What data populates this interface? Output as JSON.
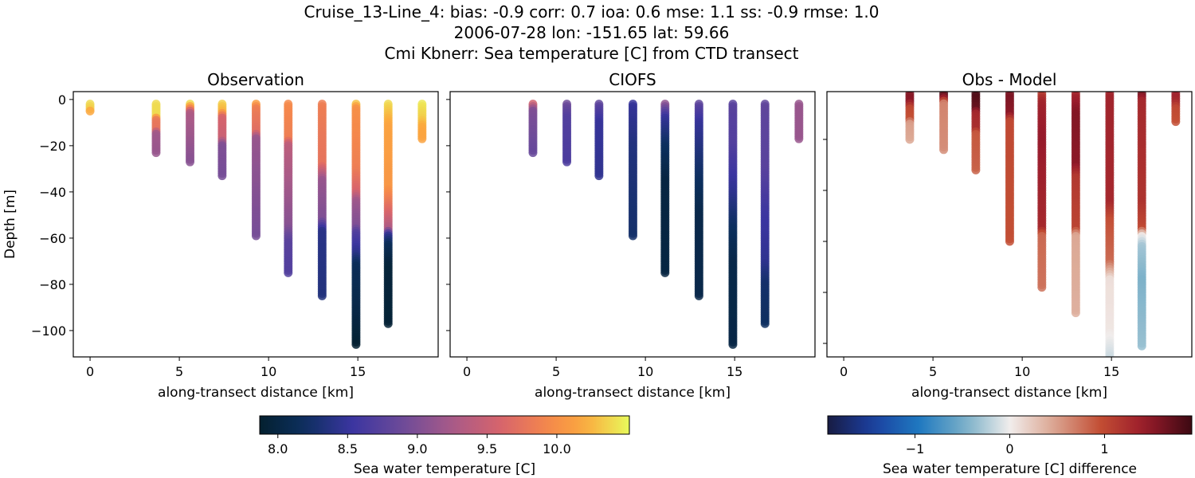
{
  "title_lines": [
    "Cruise_13-Line_4: bias: -0.9  corr: 0.7  ioa: 0.6  mse: 1.1  ss: -0.9  rmse: 1.0",
    "2006-07-28 lon: -151.65 lat: 59.66",
    "Cmi Kbnerr: Sea temperature [C] from CTD transect"
  ],
  "chart_data": [
    {
      "type": "scatter",
      "title": "Observation",
      "xlabel": "along-transect distance [km]",
      "ylabel": "Depth [m]",
      "xlim": [
        -0.94,
        19.5
      ],
      "ylim": [
        -111.4,
        3.4
      ],
      "xticks": [
        0,
        5,
        10,
        15
      ],
      "yticks": [
        0,
        -20,
        -40,
        -60,
        -80,
        -100
      ],
      "colormap": "thermal",
      "clim": [
        7.87,
        10.52
      ],
      "stations": [
        {
          "x": 0.0,
          "profile": [
            [
              -2,
              10.4
            ],
            [
              -4,
              10.35
            ],
            [
              -5.5,
              10.1
            ]
          ]
        },
        {
          "x": 3.7,
          "profile": [
            [
              -2,
              10.4
            ],
            [
              -7,
              10.4
            ],
            [
              -9,
              9.8
            ],
            [
              -13,
              9.75
            ],
            [
              -15,
              9.2
            ],
            [
              -23,
              9.15
            ]
          ]
        },
        {
          "x": 5.6,
          "profile": [
            [
              -2,
              10.4
            ],
            [
              -4,
              9.9
            ],
            [
              -6,
              9.3
            ],
            [
              -27,
              9.05
            ]
          ]
        },
        {
          "x": 7.4,
          "profile": [
            [
              -2,
              10.35
            ],
            [
              -5,
              10.25
            ],
            [
              -8,
              9.6
            ],
            [
              -17,
              9.5
            ],
            [
              -20,
              9.0
            ],
            [
              -33,
              8.95
            ]
          ]
        },
        {
          "x": 9.3,
          "profile": [
            [
              -2,
              10.1
            ],
            [
              -4,
              9.85
            ],
            [
              -14,
              9.7
            ],
            [
              -17,
              9.15
            ],
            [
              -59,
              8.95
            ]
          ]
        },
        {
          "x": 11.1,
          "profile": [
            [
              -2,
              9.95
            ],
            [
              -17,
              9.85
            ],
            [
              -20,
              9.4
            ],
            [
              -40,
              9.2
            ],
            [
              -55,
              9.05
            ],
            [
              -62,
              8.75
            ],
            [
              -75,
              8.7
            ]
          ]
        },
        {
          "x": 13.0,
          "profile": [
            [
              -2,
              9.85
            ],
            [
              -28,
              9.75
            ],
            [
              -35,
              9.15
            ],
            [
              -52,
              9.0
            ],
            [
              -57,
              8.4
            ],
            [
              -85,
              8.35
            ]
          ]
        },
        {
          "x": 14.9,
          "profile": [
            [
              -2,
              10.3
            ],
            [
              -4,
              10.0
            ],
            [
              -30,
              9.85
            ],
            [
              -40,
              9.6
            ],
            [
              -44,
              9.2
            ],
            [
              -55,
              9.0
            ],
            [
              -58,
              8.7
            ],
            [
              -66,
              8.45
            ],
            [
              -72,
              8.15
            ],
            [
              -90,
              8.05
            ],
            [
              -106,
              7.9
            ]
          ]
        },
        {
          "x": 16.7,
          "profile": [
            [
              -2,
              10.4
            ],
            [
              -6,
              10.3
            ],
            [
              -12,
              10.15
            ],
            [
              -38,
              10.05
            ],
            [
              -50,
              9.6
            ],
            [
              -56,
              9.3
            ],
            [
              -59,
              8.45
            ],
            [
              -63,
              8.15
            ],
            [
              -72,
              7.95
            ],
            [
              -97,
              7.92
            ]
          ]
        },
        {
          "x": 18.6,
          "profile": [
            [
              -2,
              10.45
            ],
            [
              -8,
              10.35
            ],
            [
              -12,
              10.2
            ],
            [
              -17,
              10.15
            ]
          ]
        }
      ]
    },
    {
      "type": "scatter",
      "title": "CIOFS",
      "xlabel": "along-transect distance [km]",
      "xlim": [
        -0.94,
        19.5
      ],
      "ylim": [
        -111.4,
        3.4
      ],
      "xticks": [
        0,
        5,
        10,
        15
      ],
      "yticks": [
        0,
        -20,
        -40,
        -60,
        -80,
        -100
      ],
      "colormap": "thermal",
      "clim": [
        7.87,
        10.52
      ],
      "stations": [
        {
          "x": 3.7,
          "profile": [
            [
              -2,
              9.55
            ],
            [
              -5,
              9.0
            ],
            [
              -23,
              8.85
            ]
          ]
        },
        {
          "x": 5.6,
          "profile": [
            [
              -2,
              8.9
            ],
            [
              -8,
              8.7
            ],
            [
              -27,
              8.65
            ]
          ]
        },
        {
          "x": 7.4,
          "profile": [
            [
              -2,
              8.8
            ],
            [
              -10,
              8.5
            ],
            [
              -33,
              8.45
            ]
          ]
        },
        {
          "x": 9.3,
          "profile": [
            [
              -2,
              8.5
            ],
            [
              -20,
              8.35
            ],
            [
              -59,
              8.25
            ]
          ]
        },
        {
          "x": 11.1,
          "profile": [
            [
              -2,
              9.1
            ],
            [
              -8,
              8.5
            ],
            [
              -20,
              8.2
            ],
            [
              -35,
              8.0
            ],
            [
              -75,
              8.0
            ]
          ]
        },
        {
          "x": 13.0,
          "profile": [
            [
              -2,
              8.8
            ],
            [
              -10,
              8.5
            ],
            [
              -30,
              8.25
            ],
            [
              -50,
              8.05
            ],
            [
              -85,
              8.05
            ]
          ]
        },
        {
          "x": 14.9,
          "profile": [
            [
              -2,
              8.75
            ],
            [
              -20,
              8.7
            ],
            [
              -40,
              8.45
            ],
            [
              -55,
              8.2
            ],
            [
              -70,
              8.05
            ],
            [
              -106,
              8.02
            ]
          ]
        },
        {
          "x": 16.7,
          "profile": [
            [
              -2,
              8.8
            ],
            [
              -30,
              8.75
            ],
            [
              -50,
              8.55
            ],
            [
              -70,
              8.45
            ],
            [
              -80,
              8.25
            ],
            [
              -97,
              8.2
            ]
          ]
        },
        {
          "x": 18.6,
          "profile": [
            [
              -2,
              9.15
            ],
            [
              -17,
              9.15
            ]
          ]
        }
      ]
    },
    {
      "type": "scatter",
      "title": "Obs - Model",
      "xlabel": "along-transect distance [km]",
      "xlim": [
        -0.94,
        19.5
      ],
      "ylim": [
        -105.3,
        -1.25
      ],
      "xticks": [
        0,
        5,
        10,
        15
      ],
      "yticks": [
        -20,
        -40,
        -60,
        -80,
        -100
      ],
      "colormap": "balance",
      "clim": [
        -1.92,
        1.92
      ],
      "stations": [
        {
          "x": 3.7,
          "profile": [
            [
              -2,
              1.55
            ],
            [
              -5,
              1.5
            ],
            [
              -8,
              1.0
            ],
            [
              -12,
              0.95
            ],
            [
              -14,
              0.5
            ],
            [
              -20,
              0.45
            ]
          ]
        },
        {
          "x": 5.6,
          "profile": [
            [
              -2,
              1.85
            ],
            [
              -4,
              1.4
            ],
            [
              -6,
              0.65
            ],
            [
              -24,
              0.6
            ]
          ]
        },
        {
          "x": 7.4,
          "profile": [
            [
              -2,
              1.85
            ],
            [
              -8,
              1.7
            ],
            [
              -10,
              1.3
            ],
            [
              -16,
              1.25
            ],
            [
              -18,
              0.9
            ],
            [
              -32,
              0.85
            ]
          ]
        },
        {
          "x": 9.3,
          "profile": [
            [
              -2,
              1.6
            ],
            [
              -10,
              1.5
            ],
            [
              -13,
              1.0
            ],
            [
              -60,
              0.95
            ]
          ]
        },
        {
          "x": 11.1,
          "profile": [
            [
              -2,
              1.1
            ],
            [
              -6,
              1.35
            ],
            [
              -20,
              1.45
            ],
            [
              -55,
              1.3
            ],
            [
              -58,
              0.8
            ],
            [
              -78,
              0.75
            ]
          ]
        },
        {
          "x": 13.0,
          "profile": [
            [
              -2,
              1.3
            ],
            [
              -10,
              1.55
            ],
            [
              -30,
              1.5
            ],
            [
              -35,
              1.15
            ],
            [
              -55,
              1.05
            ],
            [
              -58,
              0.45
            ],
            [
              -88,
              0.4
            ]
          ]
        },
        {
          "x": 14.9,
          "profile": [
            [
              -2,
              1.35
            ],
            [
              -45,
              1.3
            ],
            [
              -52,
              0.95
            ],
            [
              -68,
              0.8
            ],
            [
              -75,
              0.1
            ],
            [
              -95,
              0.05
            ],
            [
              -106,
              -0.15
            ]
          ]
        },
        {
          "x": 16.7,
          "profile": [
            [
              -2,
              1.65
            ],
            [
              -5,
              1.3
            ],
            [
              -45,
              1.2
            ],
            [
              -55,
              1.0
            ],
            [
              -58,
              0.0
            ],
            [
              -62,
              -0.3
            ],
            [
              -75,
              -0.45
            ],
            [
              -101,
              -0.35
            ]
          ]
        },
        {
          "x": 18.6,
          "profile": [
            [
              -2,
              1.4
            ],
            [
              -5,
              1.3
            ],
            [
              -8,
              1.0
            ],
            [
              -13,
              0.95
            ]
          ]
        }
      ]
    }
  ],
  "colorbars": [
    {
      "label": "Sea water temperature [C]",
      "colormap": "thermal",
      "range": [
        7.87,
        10.52
      ],
      "ticks": [
        "8.0",
        "8.5",
        "9.0",
        "9.5",
        "10.0"
      ],
      "tick_values": [
        8.0,
        8.5,
        9.0,
        9.5,
        10.0
      ]
    },
    {
      "label": "Sea water temperature [C] difference",
      "colormap": "balance",
      "range": [
        -1.92,
        1.92
      ],
      "ticks": [
        "−1",
        "0",
        "1"
      ],
      "tick_values": [
        -1,
        0,
        1
      ]
    }
  ]
}
